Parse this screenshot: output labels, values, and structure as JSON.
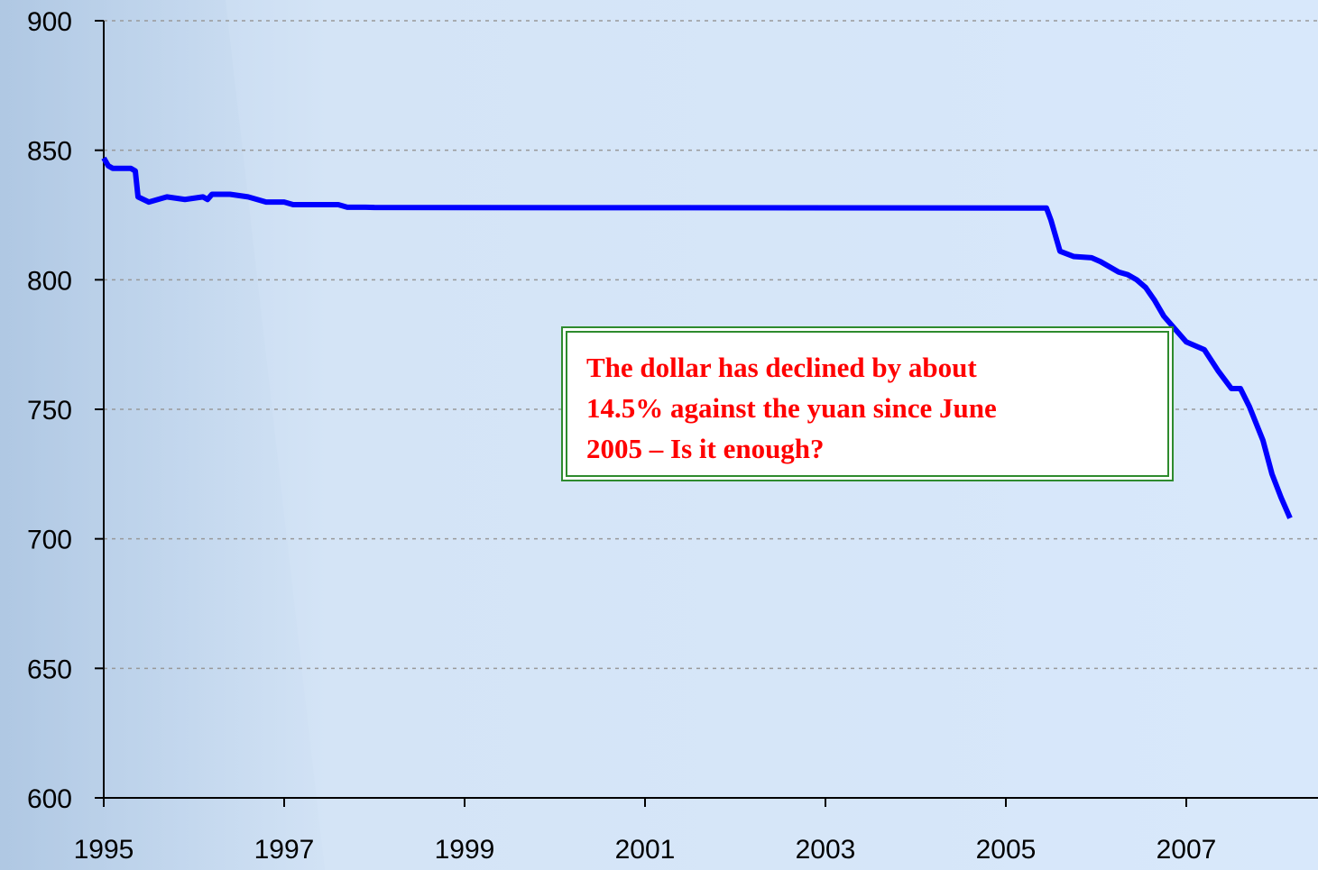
{
  "chart_data": {
    "type": "line",
    "x": [
      1995.0,
      1995.05,
      1995.1,
      1995.3,
      1995.35,
      1995.38,
      1995.5,
      1995.7,
      1995.9,
      1996.1,
      1996.15,
      1996.2,
      1996.4,
      1996.6,
      1996.8,
      1997.0,
      1997.1,
      1997.6,
      1997.7,
      1997.9,
      1998.0,
      2005.45,
      2005.5,
      2005.6,
      2005.75,
      2005.95,
      2006.05,
      2006.15,
      2006.25,
      2006.35,
      2006.45,
      2006.55,
      2006.65,
      2006.75,
      2006.85,
      2007.0,
      2007.2,
      2007.35,
      2007.5,
      2007.6,
      2007.7,
      2007.85,
      2007.95,
      2008.05,
      2008.15
    ],
    "series": [
      {
        "color": "#0000ff",
        "values": [
          847,
          844,
          843,
          843,
          842,
          832,
          830,
          832,
          831,
          832,
          831,
          833,
          833,
          832,
          830,
          830,
          829,
          829,
          828,
          828,
          827.9,
          827.7,
          823,
          811,
          809,
          808.5,
          807,
          805,
          803,
          802,
          800,
          797,
          792,
          786,
          782,
          776,
          773,
          765,
          758,
          758,
          751,
          738,
          725,
          716,
          708
        ]
      }
    ],
    "xlim": [
      1995,
      2008.46
    ],
    "xticks": [
      1995,
      1997,
      1999,
      2001,
      2003,
      2005,
      2007
    ],
    "ylim": [
      600,
      900
    ],
    "yticks": [
      600,
      650,
      700,
      750,
      800,
      850,
      900
    ],
    "grid": true,
    "annotation": [
      "The dollar has declined by about",
      "14.5% against the yuan since June",
      "2005 – Is it enough?"
    ]
  }
}
